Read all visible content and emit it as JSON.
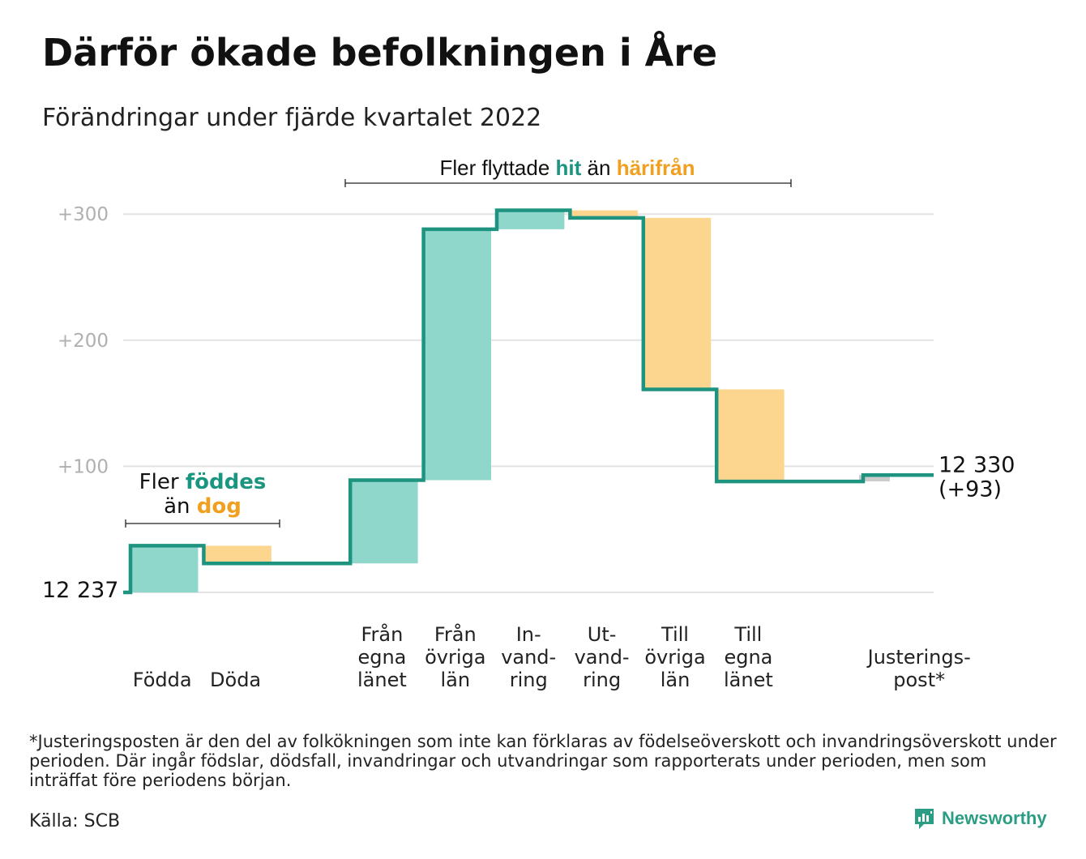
{
  "title": "Därför ökade befolkningen i Åre",
  "subtitle": "Förändringar under fjärde kvartalet 2022",
  "chart_data": {
    "type": "waterfall",
    "base_value": 12237,
    "base_label": "12 237",
    "end_label_value": "12 330",
    "end_label_change": "(+93)",
    "y_ticks": [
      {
        "value": 100,
        "label": "+100"
      },
      {
        "value": 200,
        "label": "+200"
      },
      {
        "value": 300,
        "label": "+300"
      }
    ],
    "ylim": [
      0,
      300
    ],
    "grid": true,
    "steps": [
      {
        "name": "Födda",
        "label_lines": [
          "Födda"
        ],
        "change": 37,
        "type": "increase"
      },
      {
        "name": "Döda",
        "label_lines": [
          "Döda"
        ],
        "change": -14,
        "type": "decrease"
      },
      {
        "name": "gap",
        "label_lines": [],
        "change": 0,
        "type": "none"
      },
      {
        "name": "Från egna länet",
        "label_lines": [
          "Från",
          "egna",
          "länet"
        ],
        "change": 66,
        "type": "increase"
      },
      {
        "name": "Från övriga län",
        "label_lines": [
          "Från",
          "övriga",
          "län"
        ],
        "change": 199,
        "type": "increase"
      },
      {
        "name": "Invandring",
        "label_lines": [
          "In-",
          "vand-",
          "ring"
        ],
        "change": 15,
        "type": "increase"
      },
      {
        "name": "Utvandring",
        "label_lines": [
          "Ut-",
          "vand-",
          "ring"
        ],
        "change": -6,
        "type": "decrease"
      },
      {
        "name": "Till övriga län",
        "label_lines": [
          "Till",
          "övriga",
          "län"
        ],
        "change": -136,
        "type": "decrease"
      },
      {
        "name": "Till egna länet",
        "label_lines": [
          "Till",
          "egna",
          "länet"
        ],
        "change": -73,
        "type": "decrease"
      },
      {
        "name": "gap",
        "label_lines": [],
        "change": 0,
        "type": "none"
      },
      {
        "name": "Justeringspost*",
        "label_lines": [
          "Justerings-",
          "post*"
        ],
        "change": 5,
        "type": "adjustment"
      }
    ],
    "annotations": {
      "births": {
        "line1": "Fler ",
        "line1_hl": "föddes",
        "line2": "än ",
        "line2_hl": "dog"
      },
      "migration": {
        "text": "Fler flyttade ",
        "hl1": "hit",
        "mid": " än ",
        "hl2": "härifrån"
      }
    },
    "colors": {
      "increase": "#8fd6cb",
      "decrease": "#fcd68f",
      "adjustment": "#cccccc",
      "line": "#1e9480",
      "teal_text": "#1a9580",
      "orange_text": "#f0a01e",
      "grid": "#e3e3e3"
    }
  },
  "footnote": "*Justeringsposten är den del av folkökningen som inte kan förklaras av födelseöverskott och invandringsöverskott under perioden. Där ingår födslar, dödsfall, invandringar och utvandringar som rapporterats under perioden, men som inträffat före periodens början.",
  "source": "Källa: SCB",
  "logo": {
    "text": "Newsworthy",
    "icon": "newsworthy-chart-icon"
  }
}
